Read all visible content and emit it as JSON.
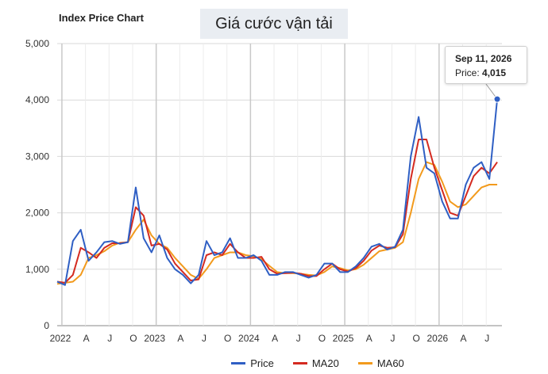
{
  "chart_data": {
    "type": "line",
    "title": "Index Price Chart",
    "overlay_title": "Giá cước vận tải",
    "ylim": [
      0,
      5000
    ],
    "y_ticks": [
      "0",
      "1,000",
      "2,000",
      "3,000",
      "4,000",
      "5,000"
    ],
    "x_tick_labels": [
      "2022",
      "A",
      "J",
      "O",
      "2023",
      "A",
      "J",
      "O",
      "2024",
      "A",
      "J",
      "O",
      "2025",
      "A",
      "J",
      "O",
      "2026",
      "A",
      "J"
    ],
    "grid": true,
    "legend_position": "bottom",
    "colors": {
      "Price": "#2f5fc4",
      "MA20": "#d42a20",
      "MA60": "#f29a1c"
    },
    "x_months": [
      0,
      1,
      2,
      3,
      4,
      5,
      6,
      7,
      8,
      9,
      10,
      11,
      12,
      13,
      14,
      15,
      16,
      17,
      18,
      19,
      20,
      21,
      22,
      23,
      24,
      25,
      26,
      27,
      28,
      29,
      30,
      31,
      32,
      33,
      34,
      35,
      36,
      37,
      38,
      39,
      40,
      41,
      42,
      43,
      44,
      45,
      46,
      47,
      48,
      49,
      50,
      51,
      52,
      53,
      54,
      55,
      56
    ],
    "series": [
      {
        "name": "Price",
        "values": [
          780,
          720,
          1500,
          1700,
          1150,
          1300,
          1480,
          1500,
          1450,
          1480,
          2450,
          1550,
          1300,
          1600,
          1200,
          1000,
          900,
          750,
          900,
          1500,
          1250,
          1300,
          1550,
          1200,
          1200,
          1250,
          1150,
          900,
          900,
          950,
          950,
          900,
          850,
          900,
          1100,
          1100,
          950,
          950,
          1050,
          1200,
          1400,
          1450,
          1350,
          1400,
          1700,
          3000,
          3700,
          2800,
          2700,
          2200,
          1900,
          1900,
          2500,
          2800,
          2900,
          2600,
          4015
        ]
      },
      {
        "name": "MA20",
        "values": [
          780,
          760,
          900,
          1380,
          1300,
          1200,
          1380,
          1460,
          1460,
          1480,
          2100,
          1950,
          1420,
          1450,
          1350,
          1100,
          950,
          800,
          820,
          1250,
          1300,
          1250,
          1450,
          1300,
          1200,
          1200,
          1220,
          1000,
          920,
          930,
          940,
          920,
          880,
          880,
          1000,
          1100,
          1000,
          960,
          1020,
          1150,
          1330,
          1420,
          1380,
          1390,
          1620,
          2600,
          3300,
          3300,
          2800,
          2400,
          2000,
          1950,
          2300,
          2650,
          2800,
          2700,
          2900
        ]
      },
      {
        "name": "MA60",
        "values": [
          740,
          760,
          780,
          900,
          1200,
          1250,
          1320,
          1420,
          1470,
          1480,
          1700,
          1880,
          1600,
          1450,
          1380,
          1200,
          1050,
          900,
          830,
          1000,
          1200,
          1250,
          1300,
          1300,
          1250,
          1230,
          1180,
          1060,
          950,
          930,
          930,
          920,
          900,
          890,
          950,
          1050,
          1020,
          980,
          1000,
          1080,
          1200,
          1320,
          1350,
          1380,
          1480,
          2000,
          2600,
          2900,
          2850,
          2550,
          2200,
          2100,
          2150,
          2300,
          2450,
          2500,
          2500
        ]
      }
    ],
    "tooltip": {
      "date": "Sep 11, 2026",
      "label": "Price: ",
      "value": "4,015"
    }
  }
}
